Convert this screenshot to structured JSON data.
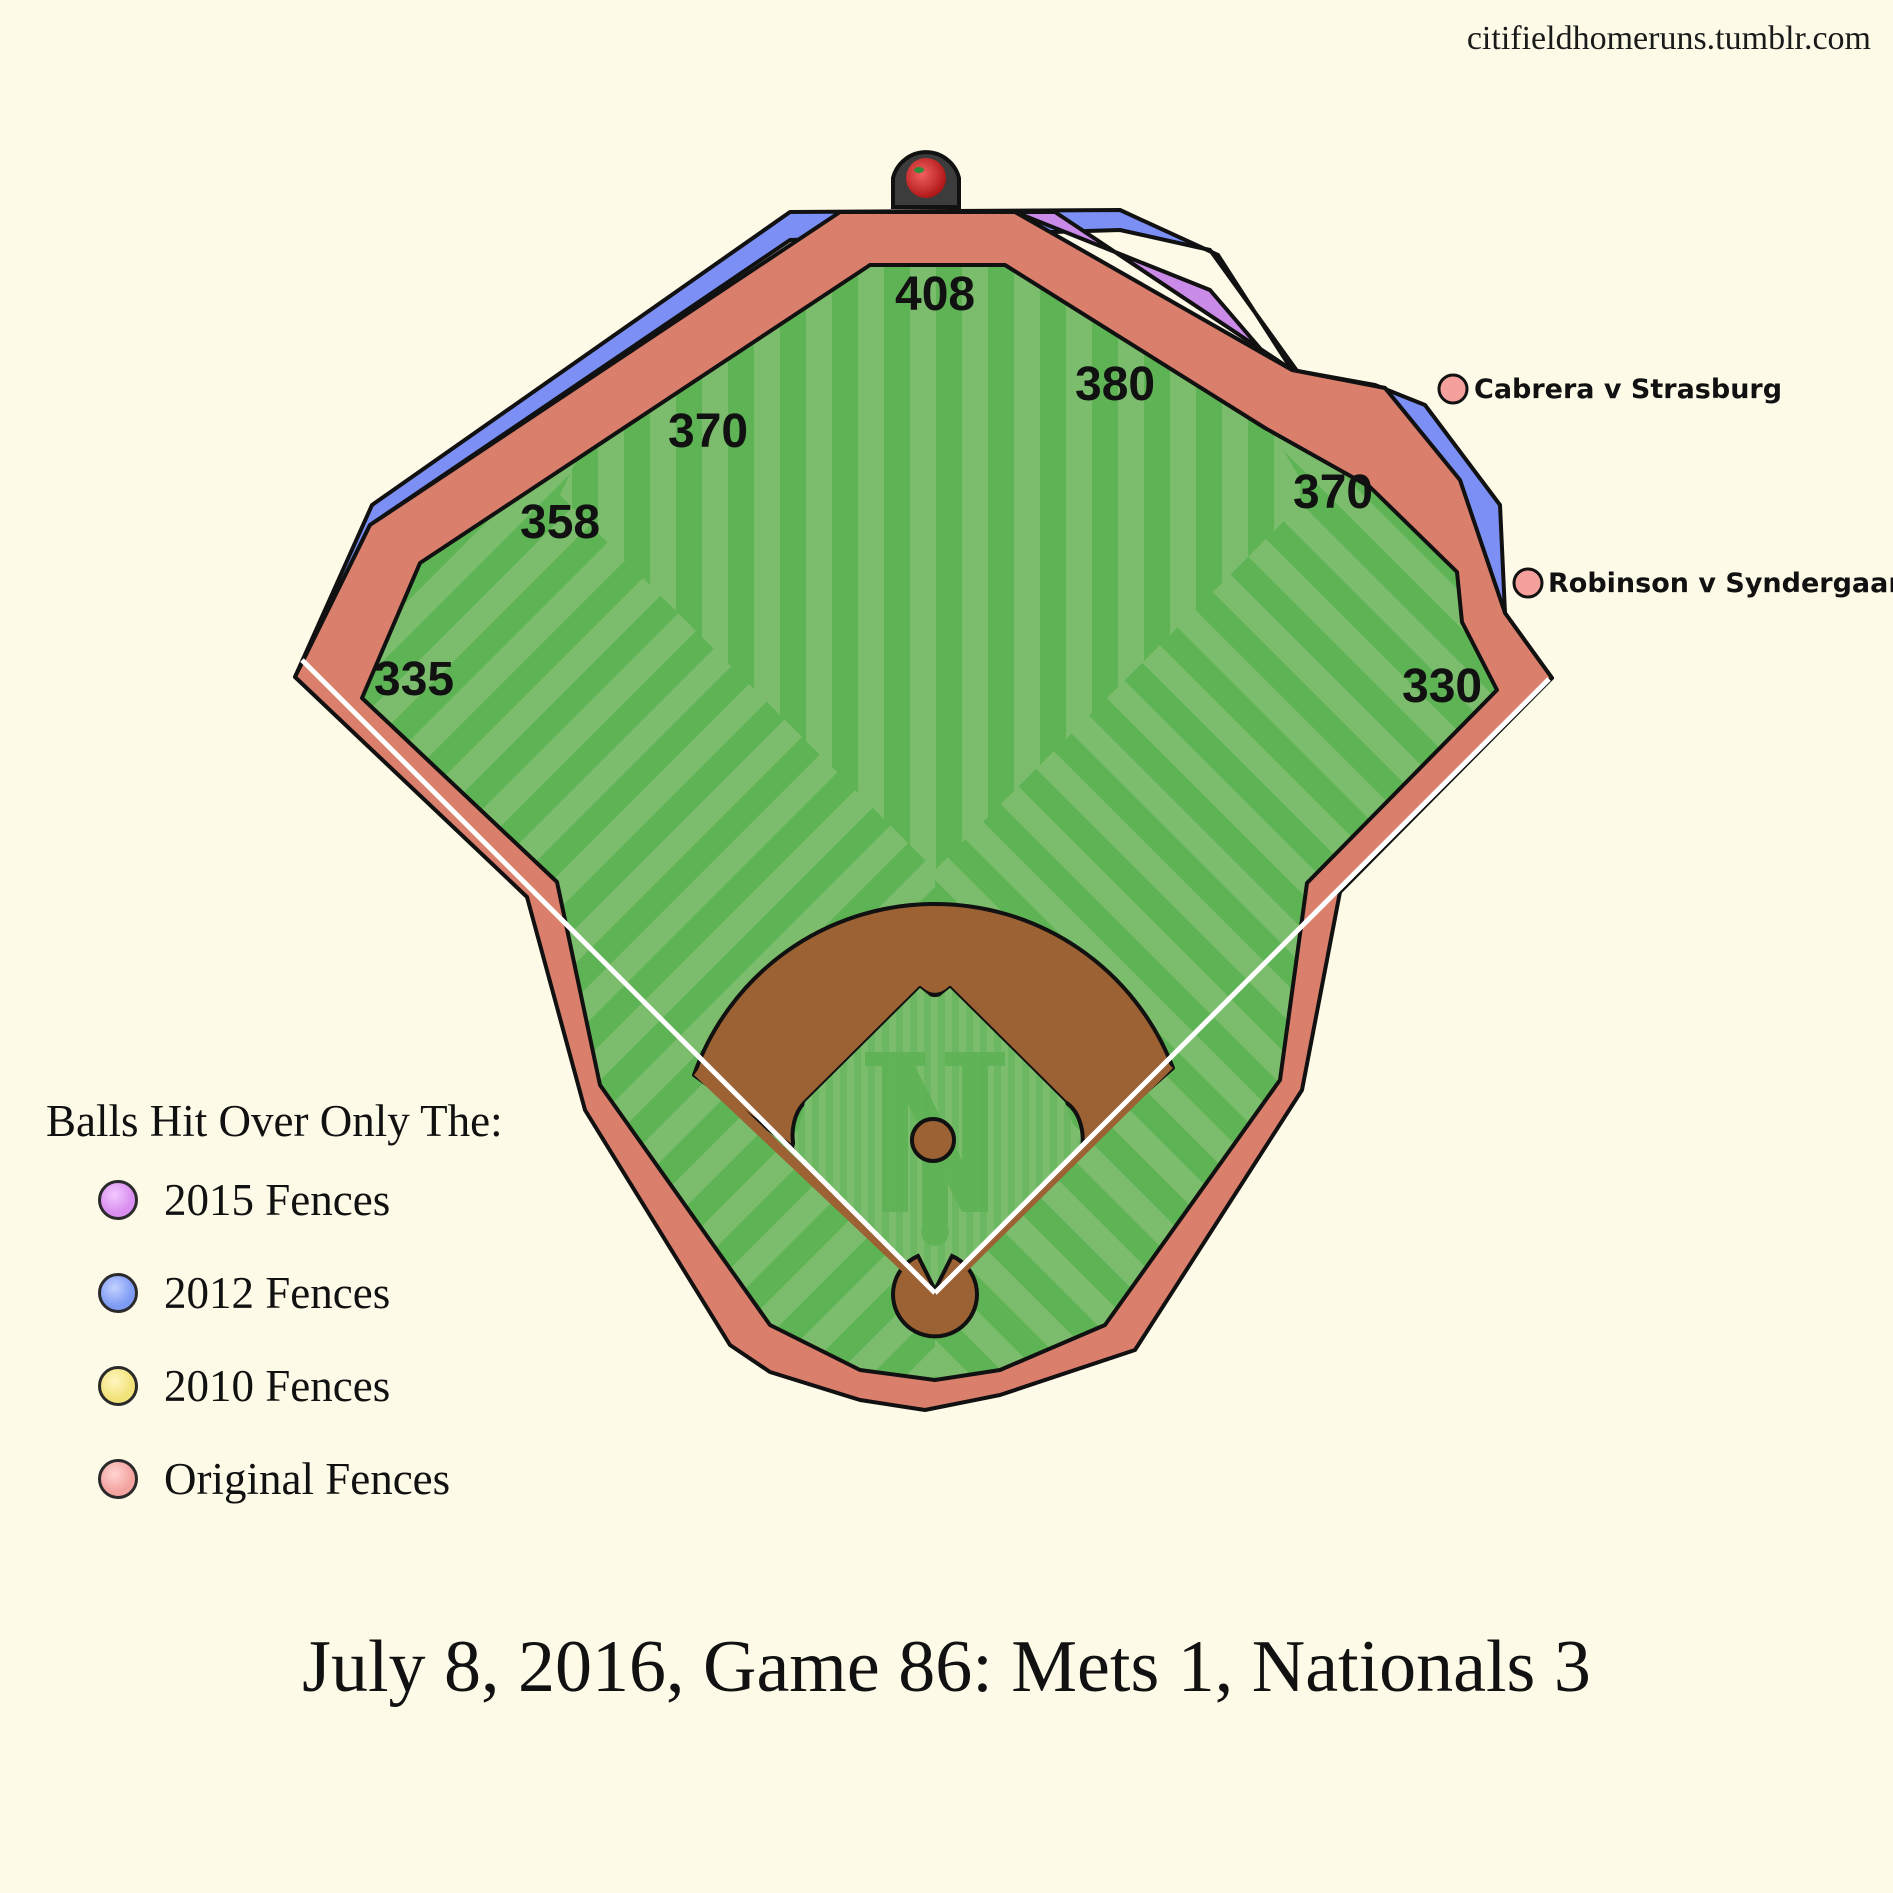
{
  "site": "citifieldhomeruns.tumblr.com",
  "game_title": "July 8, 2016, Game 86: Mets 1, Nationals 3",
  "distances": [
    "335",
    "358",
    "370",
    "408",
    "380",
    "370",
    "330"
  ],
  "home_runs": [
    {
      "label": "Cabrera v Strasburg",
      "fence": "Original Fences",
      "color": "#f4a09c"
    },
    {
      "label": "Robinson v Syndergaard",
      "fence": "Original Fences",
      "color": "#f4a09c"
    }
  ],
  "legend": {
    "title": "Balls Hit Over Only The:",
    "items": [
      {
        "label": "2015 Fences",
        "color": "#d98ef0"
      },
      {
        "label": "2012 Fences",
        "color": "#7f9cf5"
      },
      {
        "label": "2010 Fences",
        "color": "#f2e27a"
      },
      {
        "label": "Original Fences",
        "color": "#f3a3a0"
      }
    ]
  },
  "colors": {
    "background": "#fefae8",
    "warning_track": "#db7f6d",
    "fence_2012": "#7b8ff5",
    "fence_2015": "#c98ae8",
    "grass_light": "#7cbd6d",
    "grass_dark": "#5eb355",
    "dirt": "#9c6234",
    "foul_line": "#ffffff"
  },
  "icons": [
    "home-run-apple-icon",
    "mets-logo-icon"
  ]
}
